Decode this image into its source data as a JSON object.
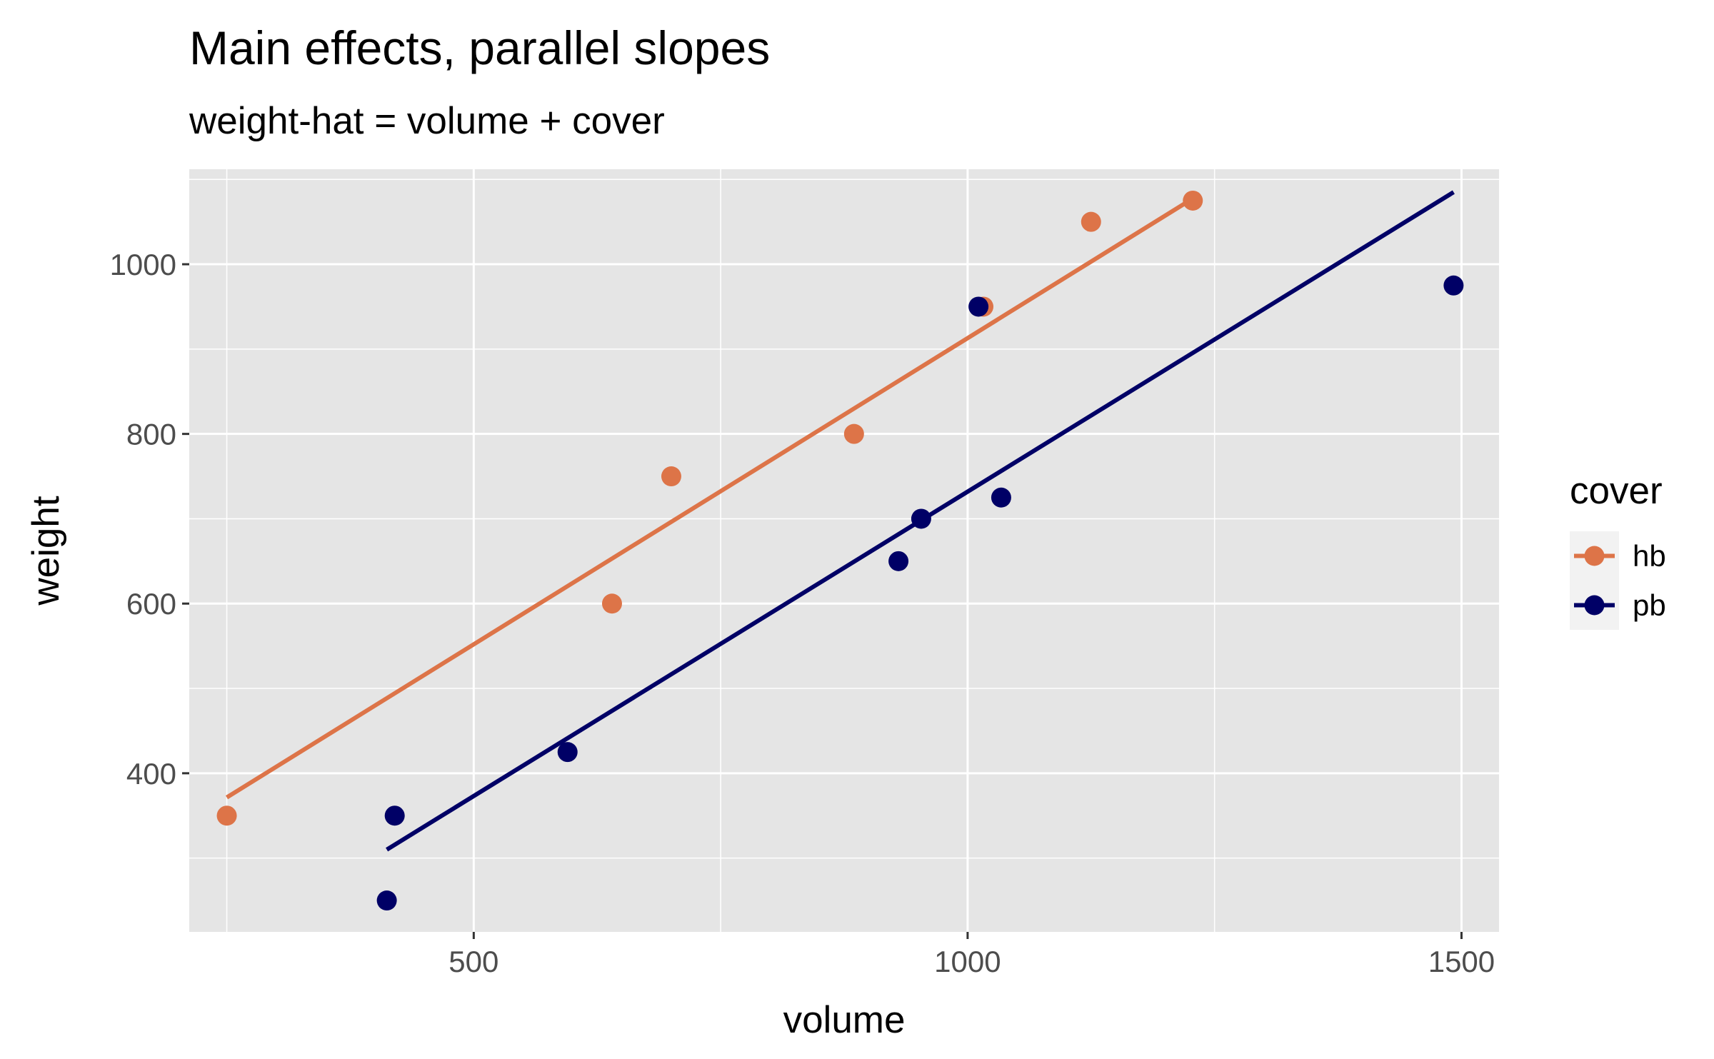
{
  "chart_data": {
    "type": "scatter",
    "title": "Main effects, parallel slopes",
    "subtitle": "weight-hat = volume + cover",
    "xlabel": "volume",
    "ylabel": "weight",
    "xlim": [
      212,
      1538
    ],
    "ylim": [
      213,
      1112
    ],
    "x_ticks": [
      500,
      1000,
      1500
    ],
    "x_tick_labels": [
      "500",
      "1000",
      "1500"
    ],
    "y_ticks": [
      400,
      600,
      800,
      1000
    ],
    "y_tick_labels": [
      "400",
      "600",
      "800",
      "1000"
    ],
    "grid": true,
    "legend": {
      "title": "cover",
      "placement": "right"
    },
    "series": [
      {
        "name": "hb",
        "color": "#dd7448",
        "points": [
          {
            "x": 250,
            "y": 350
          },
          {
            "x": 640,
            "y": 600
          },
          {
            "x": 700,
            "y": 750
          },
          {
            "x": 885,
            "y": 800
          },
          {
            "x": 1016,
            "y": 950
          },
          {
            "x": 1125,
            "y": 1050
          },
          {
            "x": 1228,
            "y": 1075
          }
        ],
        "fit_line": {
          "x": [
            250,
            1228
          ],
          "y": [
            371.5,
            1077.5
          ]
        }
      },
      {
        "name": "pb",
        "color": "#000066",
        "points": [
          {
            "x": 412,
            "y": 250
          },
          {
            "x": 420,
            "y": 350
          },
          {
            "x": 595,
            "y": 425
          },
          {
            "x": 930,
            "y": 650
          },
          {
            "x": 953,
            "y": 700
          },
          {
            "x": 1011,
            "y": 950
          },
          {
            "x": 1034,
            "y": 725
          },
          {
            "x": 1492,
            "y": 975
          }
        ],
        "fit_line": {
          "x": [
            412,
            1492
          ],
          "y": [
            310.0,
            1085.0
          ]
        }
      }
    ]
  }
}
